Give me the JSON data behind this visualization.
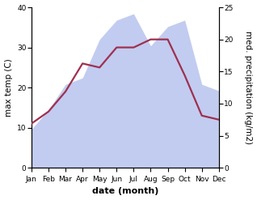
{
  "months": [
    "Jan",
    "Feb",
    "Mar",
    "Apr",
    "May",
    "Jun",
    "Jul",
    "Aug",
    "Sep",
    "Oct",
    "Nov",
    "Dec"
  ],
  "temp_max": [
    11,
    14,
    19,
    26,
    25,
    30,
    30,
    32,
    32,
    23,
    13,
    12
  ],
  "precipitation": [
    6,
    9,
    13,
    14,
    20,
    23,
    24,
    19,
    22,
    23,
    13,
    12
  ],
  "temp_ylim": [
    0,
    40
  ],
  "precip_ylim": [
    0,
    25
  ],
  "temp_yticks": [
    0,
    10,
    20,
    30,
    40
  ],
  "precip_yticks": [
    0,
    5,
    10,
    15,
    20,
    25
  ],
  "fill_color": "#b8c4ee",
  "fill_alpha": 0.85,
  "line_color": "#9e3050",
  "line_width": 1.6,
  "xlabel": "date (month)",
  "ylabel_left": "max temp (C)",
  "ylabel_right": "med. precipitation (kg/m2)",
  "background_color": "#ffffff",
  "label_fontsize": 7.5,
  "tick_fontsize": 6.5,
  "xlabel_fontsize": 8
}
